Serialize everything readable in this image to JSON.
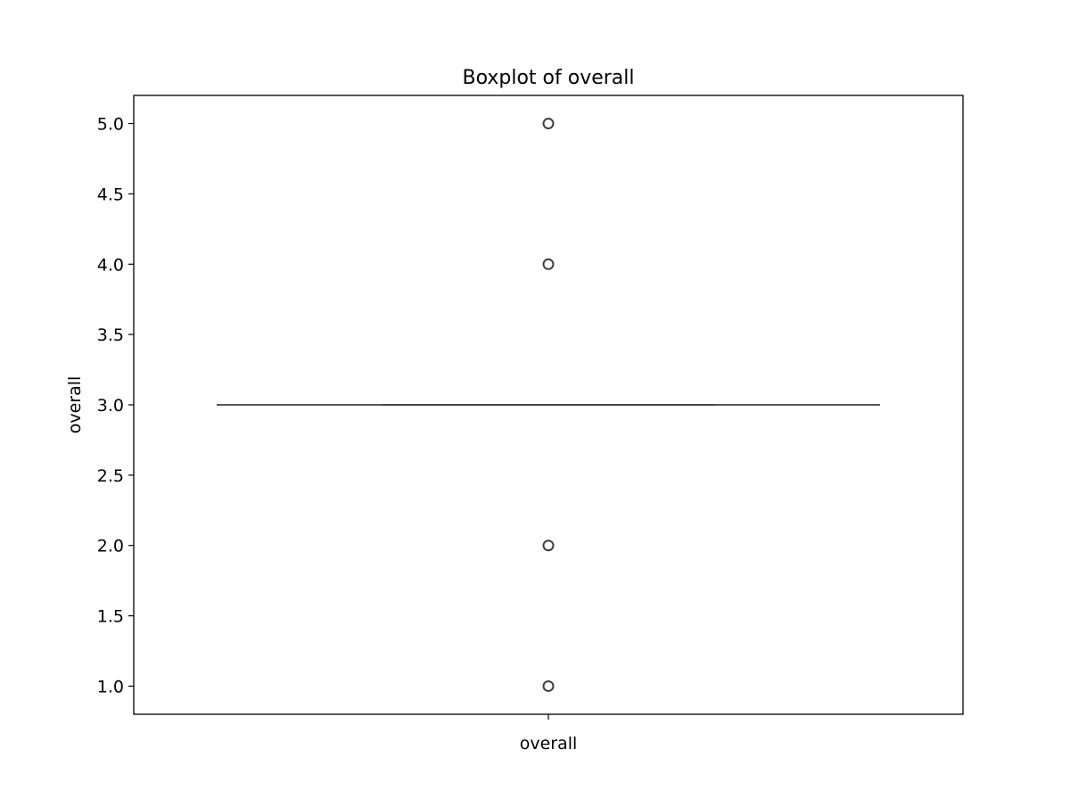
{
  "chart_data": {
    "type": "box",
    "title": "Boxplot of overall",
    "xlabel": "",
    "ylabel": "overall",
    "categories": [
      "overall"
    ],
    "ylim": [
      0.8,
      5.2
    ],
    "yticks": [
      1.0,
      1.5,
      2.0,
      2.5,
      3.0,
      3.5,
      4.0,
      4.5,
      5.0
    ],
    "ytick_labels": [
      "1.0",
      "1.5",
      "2.0",
      "2.5",
      "3.0",
      "3.5",
      "4.0",
      "4.5",
      "5.0"
    ],
    "grid": false,
    "boxes": [
      {
        "category": "overall",
        "whisker_low": 3.0,
        "q1": 3.0,
        "median": 3.0,
        "q3": 3.0,
        "whisker_high": 3.0,
        "outliers": [
          1.0,
          2.0,
          4.0,
          5.0
        ]
      }
    ],
    "colors": {
      "line": "#3f3f3f",
      "axes": "#000000",
      "background": "#ffffff"
    }
  }
}
